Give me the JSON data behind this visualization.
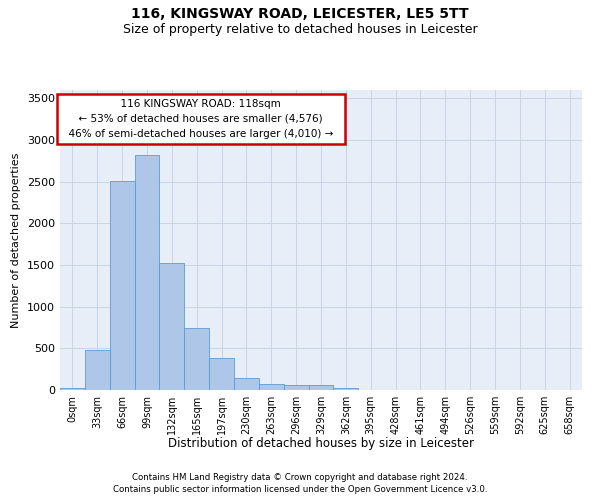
{
  "title": "116, KINGSWAY ROAD, LEICESTER, LE5 5TT",
  "subtitle": "Size of property relative to detached houses in Leicester",
  "xlabel": "Distribution of detached houses by size in Leicester",
  "ylabel": "Number of detached properties",
  "footer_line1": "Contains HM Land Registry data © Crown copyright and database right 2024.",
  "footer_line2": "Contains public sector information licensed under the Open Government Licence v3.0.",
  "annotation_line1": "116 KINGSWAY ROAD: 118sqm",
  "annotation_line2": "← 53% of detached houses are smaller (4,576)",
  "annotation_line3": "46% of semi-detached houses are larger (4,010) →",
  "bar_labels": [
    "0sqm",
    "33sqm",
    "66sqm",
    "99sqm",
    "132sqm",
    "165sqm",
    "197sqm",
    "230sqm",
    "263sqm",
    "296sqm",
    "329sqm",
    "362sqm",
    "395sqm",
    "428sqm",
    "461sqm",
    "494sqm",
    "526sqm",
    "559sqm",
    "592sqm",
    "625sqm",
    "658sqm"
  ],
  "bar_values": [
    20,
    480,
    2510,
    2820,
    1520,
    750,
    390,
    145,
    75,
    55,
    55,
    20,
    0,
    0,
    0,
    0,
    0,
    0,
    0,
    0,
    0
  ],
  "bar_color": "#aec6e8",
  "bar_edge_color": "#5b9bd5",
  "ylim": [
    0,
    3600
  ],
  "yticks": [
    0,
    500,
    1000,
    1500,
    2000,
    2500,
    3000,
    3500
  ],
  "grid_color": "#c8d4e8",
  "background_color": "#e8eef8",
  "annotation_box_color": "#cc0000",
  "title_fontsize": 10,
  "subtitle_fontsize": 9
}
